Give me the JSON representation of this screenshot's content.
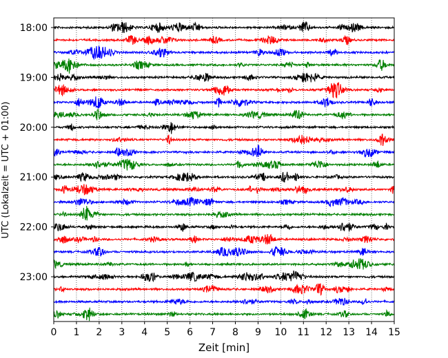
{
  "chart_data": {
    "type": "line",
    "title": "",
    "xlabel": "Zeit  [min]",
    "ylabel": "UTC (Lokalzeit = UTC + 01:00)",
    "xlim": [
      0,
      15
    ],
    "x_ticks": [
      0,
      1,
      2,
      3,
      4,
      5,
      6,
      7,
      8,
      9,
      10,
      11,
      12,
      13,
      14,
      15
    ],
    "y_tick_labels": [
      "18:00",
      "19:00",
      "20:00",
      "21:00",
      "22:00",
      "23:00"
    ],
    "trace_interval_minutes": 15,
    "first_trace": "18:00",
    "last_trace": "23:45",
    "trace_count": 24,
    "trace_colors": [
      "#000000",
      "#ff0000",
      "#0000ff",
      "#008000"
    ],
    "x_grid": "dotted vertical lines at each minute",
    "frame_color": "#000000",
    "background": "#ffffff"
  }
}
